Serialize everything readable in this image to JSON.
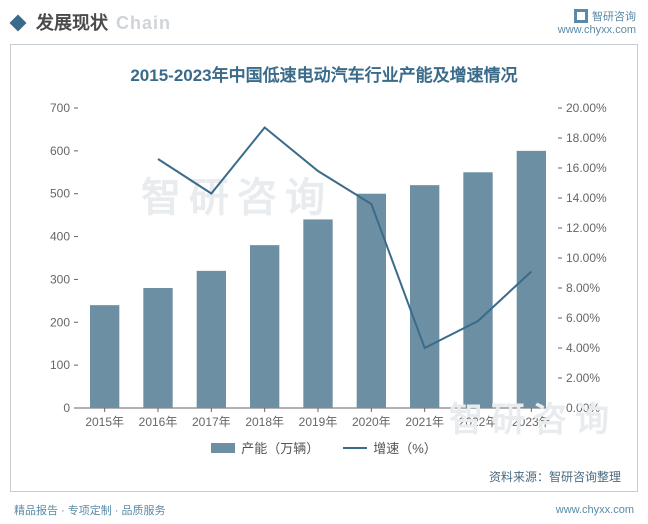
{
  "header": {
    "title_cn": "发展现状",
    "title_en": "Chain",
    "brand": "智研咨询",
    "url": "www.chyxx.com"
  },
  "chart": {
    "type": "bar+line",
    "title": "2015-2023年中国低速电动汽车行业产能及增速情况",
    "categories": [
      "2015年",
      "2016年",
      "2017年",
      "2018年",
      "2019年",
      "2020年",
      "2021年",
      "2022年",
      "2023年"
    ],
    "bar_series": {
      "label": "产能（万辆）",
      "values": [
        240,
        280,
        320,
        380,
        440,
        500,
        520,
        550,
        600
      ],
      "color": "#6d8fa3"
    },
    "line_series": {
      "label": "增速（%）",
      "values": [
        null,
        16.6,
        14.3,
        18.7,
        15.8,
        13.6,
        4.0,
        5.8,
        9.1
      ],
      "color": "#3a6b8a",
      "line_width": 2
    },
    "y_left": {
      "min": 0,
      "max": 700,
      "step": 100
    },
    "y_right": {
      "min": 0,
      "max": 20,
      "step": 2,
      "fmt_suffix": ".00%"
    },
    "background_color": "#ffffff",
    "border_color": "#c5cdd3",
    "tick_color": "#666666",
    "bar_width_ratio": 0.55
  },
  "watermark": "智研咨询",
  "source": "资料来源：智研咨询整理",
  "footer": {
    "left": "精品报告 · 专项定制 · 品质服务",
    "right": "www.chyxx.com"
  }
}
